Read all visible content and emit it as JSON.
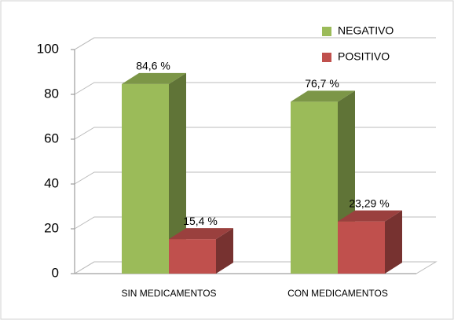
{
  "chart_data": {
    "type": "bar3d",
    "categories": [
      "SIN MEDICAMENTOS",
      "CON MEDICAMENTOS"
    ],
    "series": [
      {
        "name": "NEGATIVO",
        "color": "#9bbb59",
        "values": [
          84.6,
          76.7
        ],
        "value_labels": [
          "84,6 %",
          "76,7 %"
        ]
      },
      {
        "name": "POSITIVO",
        "color": "#c0504d",
        "values": [
          15.4,
          23.29
        ],
        "value_labels": [
          "15,4 %",
          "23,29 %"
        ]
      }
    ],
    "ylim": [
      0,
      100
    ],
    "yticks": [
      0,
      20,
      40,
      60,
      80,
      100
    ],
    "grid": true,
    "legend": "top-right"
  }
}
